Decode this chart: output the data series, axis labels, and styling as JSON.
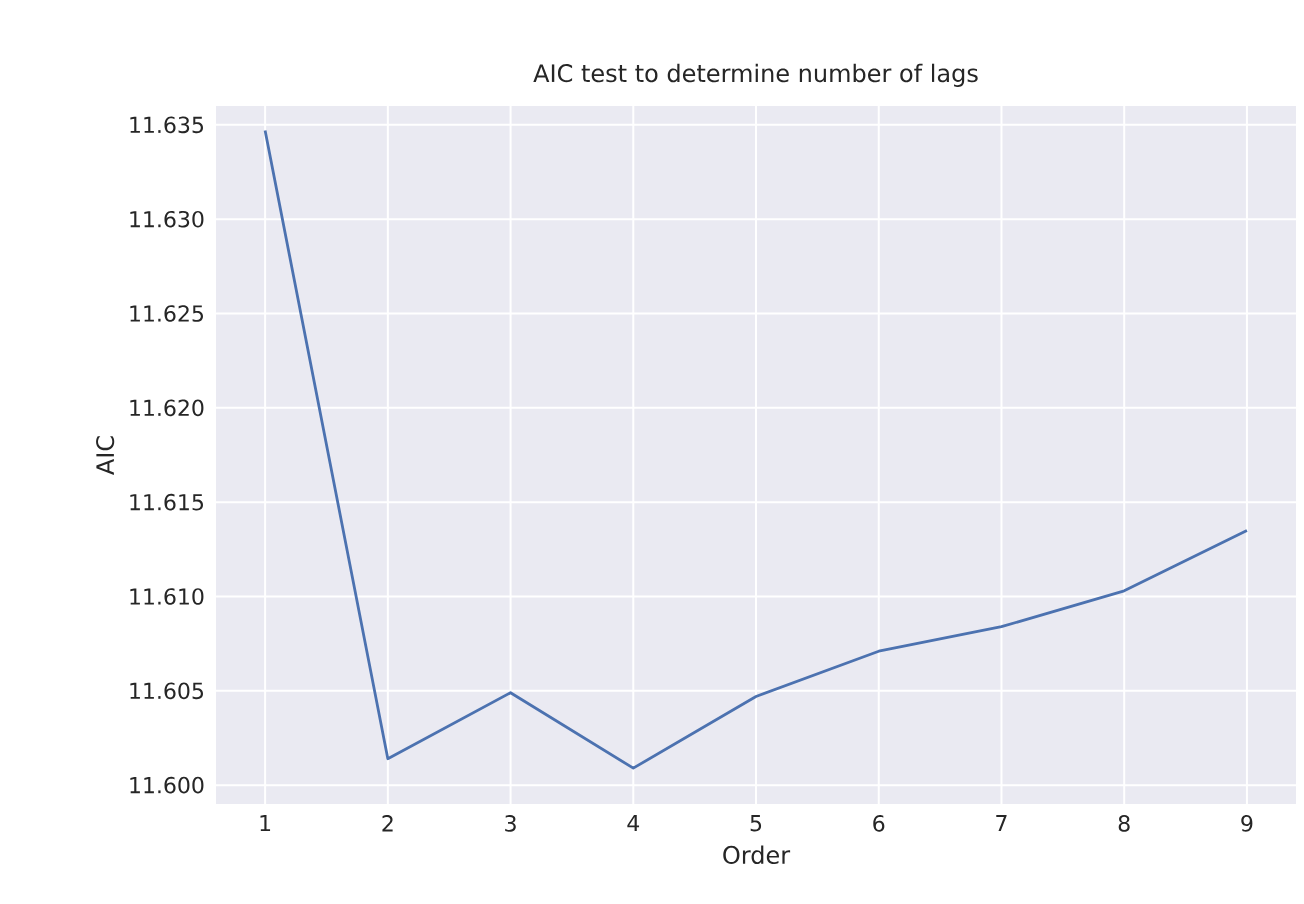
{
  "chart_data": {
    "type": "line",
    "title": "AIC test to determine number of lags",
    "xlabel": "Order",
    "ylabel": "AIC",
    "x": [
      1,
      2,
      3,
      4,
      5,
      6,
      7,
      8,
      9
    ],
    "series": [
      {
        "color": "#4c72b0",
        "values": [
          11.6347,
          11.6014,
          11.6049,
          11.6009,
          11.6047,
          11.6071,
          11.6084,
          11.6103,
          11.6135
        ]
      }
    ],
    "xlim": [
      0.6,
      9.4
    ],
    "ylim": [
      11.599,
      11.636
    ],
    "xticks": [
      1,
      2,
      3,
      4,
      5,
      6,
      7,
      8,
      9
    ],
    "yticks": [
      {
        "value": 11.6,
        "label": "11.600"
      },
      {
        "value": 11.605,
        "label": "11.605"
      },
      {
        "value": 11.61,
        "label": "11.610"
      },
      {
        "value": 11.615,
        "label": "11.615"
      },
      {
        "value": 11.62,
        "label": "11.620"
      },
      {
        "value": 11.625,
        "label": "11.625"
      },
      {
        "value": 11.63,
        "label": "11.630"
      },
      {
        "value": 11.635,
        "label": "11.635"
      }
    ],
    "grid": true,
    "marker": "none",
    "line_style": "solid"
  }
}
